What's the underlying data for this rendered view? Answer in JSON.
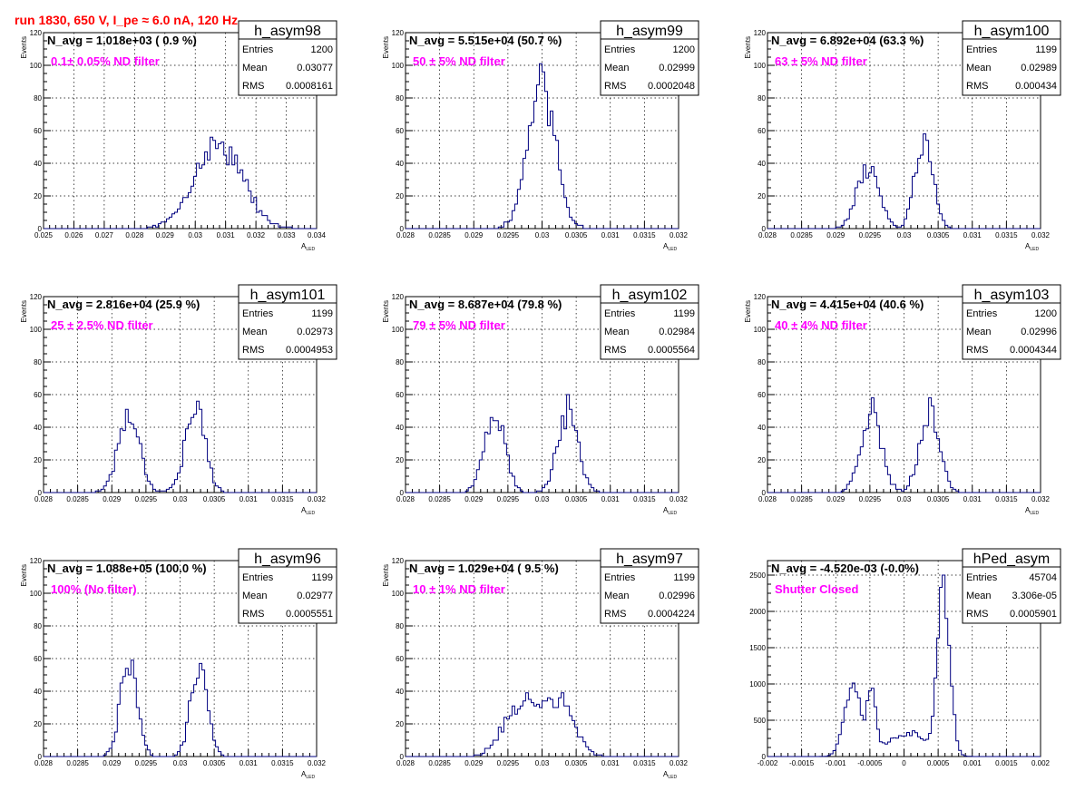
{
  "header": {
    "run_title": "run 1830,   650 V, I_pe ≈ 6.0 nA, 120 Hz"
  },
  "colors": {
    "histogram": "#000080",
    "filter_text": "#ff00ff",
    "header_text": "#ff0000"
  },
  "stat_labels": {
    "entries": "Entries",
    "mean": "Mean",
    "rms": "RMS"
  },
  "chart_data": [
    {
      "type": "bar",
      "name": "h_asym98",
      "n_avg": "N_avg = 1.018e+03 ( 0.9 %)",
      "filter_label": "0.1± 0.05% ND filter",
      "stats": {
        "entries": "1200",
        "mean": "0.03077",
        "rms": "0.0008161"
      },
      "ylabel": "Events",
      "xlabel": "A",
      "xlabel_sub": "LED",
      "xlim": [
        0.025,
        0.034
      ],
      "ylim": [
        0,
        120
      ],
      "grid": true,
      "xticks": [
        0.025,
        0.026,
        0.027,
        0.028,
        0.029,
        0.03,
        0.031,
        0.032,
        0.033,
        0.034
      ],
      "xtick_labels": [
        "0.025",
        "0.026",
        "0.027",
        "0.028",
        "0.029",
        "0.03",
        "0.031",
        "0.032",
        "0.033",
        "0.034"
      ],
      "yticks": [
        0,
        20,
        40,
        60,
        80,
        100,
        120
      ],
      "ytick_labels": [
        "0",
        "20",
        "40",
        "60",
        "80",
        "100",
        "120"
      ],
      "modes": [
        {
          "mu": 0.03077,
          "sigma": 0.00078,
          "peak": 52
        }
      ],
      "seed": 7
    },
    {
      "type": "bar",
      "name": "h_asym99",
      "n_avg": "N_avg = 5.515e+04 (50.7 %)",
      "filter_label": "50 ± 5% ND filter",
      "stats": {
        "entries": "1200",
        "mean": "0.02999",
        "rms": "0.0002048"
      },
      "ylabel": "Events",
      "xlabel": "A",
      "xlabel_sub": "LED",
      "xlim": [
        0.028,
        0.032
      ],
      "ylim": [
        0,
        120
      ],
      "grid": true,
      "xticks": [
        0.028,
        0.0285,
        0.029,
        0.0295,
        0.03,
        0.0305,
        0.031,
        0.0315,
        0.032
      ],
      "xtick_labels": [
        "0.028",
        "0.0285",
        "0.029",
        "0.0295",
        "0.03",
        "0.0305",
        "0.031",
        "0.0315",
        "0.032"
      ],
      "yticks": [
        0,
        20,
        40,
        60,
        80,
        100,
        120
      ],
      "ytick_labels": [
        "0",
        "20",
        "40",
        "60",
        "80",
        "100",
        "120"
      ],
      "modes": [
        {
          "mu": 0.02999,
          "sigma": 0.0002,
          "peak": 90
        }
      ],
      "seed": 11
    },
    {
      "type": "bar",
      "name": "h_asym100",
      "n_avg": "N_avg = 6.892e+04 (63.3 %)",
      "filter_label": "63 ± 5% ND filter",
      "stats": {
        "entries": "1199",
        "mean": "0.02989",
        "rms": "0.000434"
      },
      "ylabel": "Events",
      "xlabel": "A",
      "xlabel_sub": "LED",
      "xlim": [
        0.028,
        0.032
      ],
      "ylim": [
        0,
        120
      ],
      "grid": true,
      "xticks": [
        0.028,
        0.0285,
        0.029,
        0.0295,
        0.03,
        0.0305,
        0.031,
        0.0315,
        0.032
      ],
      "xtick_labels": [
        "0.028",
        "0.0285",
        "0.029",
        "0.0295",
        "0.03",
        "0.0305",
        "0.031",
        "0.0315",
        "0.032"
      ],
      "yticks": [
        0,
        20,
        40,
        60,
        80,
        100,
        120
      ],
      "ytick_labels": [
        "0",
        "20",
        "40",
        "60",
        "80",
        "100",
        "120"
      ],
      "modes": [
        {
          "mu": 0.02947,
          "sigma": 0.00016,
          "peak": 38
        },
        {
          "mu": 0.03029,
          "sigma": 0.00013,
          "peak": 52
        }
      ],
      "seed": 13
    },
    {
      "type": "bar",
      "name": "h_asym101",
      "n_avg": "N_avg = 2.816e+04 (25.9 %)",
      "filter_label": "25 ± 2.5% ND filter",
      "stats": {
        "entries": "1199",
        "mean": "0.02973",
        "rms": "0.0004953"
      },
      "ylabel": "Events",
      "xlabel": "A",
      "xlabel_sub": "LED",
      "xlim": [
        0.028,
        0.032
      ],
      "ylim": [
        0,
        120
      ],
      "grid": true,
      "xticks": [
        0.028,
        0.0285,
        0.029,
        0.0295,
        0.03,
        0.0305,
        0.031,
        0.0315,
        0.032
      ],
      "xtick_labels": [
        "0.028",
        "0.0285",
        "0.029",
        "0.0295",
        "0.03",
        "0.0305",
        "0.031",
        "0.0315",
        "0.032"
      ],
      "yticks": [
        0,
        20,
        40,
        60,
        80,
        100,
        120
      ],
      "ytick_labels": [
        "0",
        "20",
        "40",
        "60",
        "80",
        "100",
        "120"
      ],
      "modes": [
        {
          "mu": 0.02925,
          "sigma": 0.00016,
          "peak": 48
        },
        {
          "mu": 0.03022,
          "sigma": 0.00015,
          "peak": 50
        }
      ],
      "seed": 17
    },
    {
      "type": "bar",
      "name": "h_asym102",
      "n_avg": "N_avg = 8.687e+04 (79.8 %)",
      "filter_label": "79 ± 5% ND filter",
      "stats": {
        "entries": "1199",
        "mean": "0.02984",
        "rms": "0.0005564"
      },
      "ylabel": "Events",
      "xlabel": "A",
      "xlabel_sub": "LED",
      "xlim": [
        0.028,
        0.032
      ],
      "ylim": [
        0,
        120
      ],
      "grid": true,
      "xticks": [
        0.028,
        0.0285,
        0.029,
        0.0295,
        0.03,
        0.0305,
        0.031,
        0.0315,
        0.032
      ],
      "xtick_labels": [
        "0.028",
        "0.0285",
        "0.029",
        "0.0295",
        "0.03",
        "0.0305",
        "0.031",
        "0.0315",
        "0.032"
      ],
      "yticks": [
        0,
        20,
        40,
        60,
        80,
        100,
        120
      ],
      "ytick_labels": [
        "0",
        "20",
        "40",
        "60",
        "80",
        "100",
        "120"
      ],
      "modes": [
        {
          "mu": 0.0293,
          "sigma": 0.00015,
          "peak": 48
        },
        {
          "mu": 0.03038,
          "sigma": 0.00015,
          "peak": 50
        }
      ],
      "seed": 19
    },
    {
      "type": "bar",
      "name": "h_asym103",
      "n_avg": "N_avg = 4.415e+04 (40.6 %)",
      "filter_label": "40 ± 4% ND filter",
      "stats": {
        "entries": "1200",
        "mean": "0.02996",
        "rms": "0.0004344"
      },
      "ylabel": "Events",
      "xlabel": "A",
      "xlabel_sub": "LED",
      "xlim": [
        0.028,
        0.032
      ],
      "ylim": [
        0,
        120
      ],
      "grid": true,
      "xticks": [
        0.028,
        0.0285,
        0.029,
        0.0295,
        0.03,
        0.0305,
        0.031,
        0.0315,
        0.032
      ],
      "xtick_labels": [
        "0.028",
        "0.0285",
        "0.029",
        "0.0295",
        "0.03",
        "0.0305",
        "0.031",
        "0.0315",
        "0.032"
      ],
      "yticks": [
        0,
        20,
        40,
        60,
        80,
        100,
        120
      ],
      "ytick_labels": [
        "0",
        "20",
        "40",
        "60",
        "80",
        "100",
        "120"
      ],
      "modes": [
        {
          "mu": 0.02952,
          "sigma": 0.00015,
          "peak": 50
        },
        {
          "mu": 0.03037,
          "sigma": 0.00014,
          "peak": 52
        }
      ],
      "seed": 23
    },
    {
      "type": "bar",
      "name": "h_asym96",
      "n_avg": "N_avg = 1.088e+05 (100.0 %)",
      "filter_label": "100% (No filter)",
      "stats": {
        "entries": "1199",
        "mean": "0.02977",
        "rms": "0.0005551"
      },
      "ylabel": "Events",
      "xlabel": "A",
      "xlabel_sub": "LED",
      "xlim": [
        0.028,
        0.032
      ],
      "ylim": [
        0,
        120
      ],
      "grid": true,
      "xticks": [
        0.028,
        0.0285,
        0.029,
        0.0295,
        0.03,
        0.0305,
        0.031,
        0.0315,
        0.032
      ],
      "xtick_labels": [
        "0.028",
        "0.0285",
        "0.029",
        "0.0295",
        "0.03",
        "0.0305",
        "0.031",
        "0.0315",
        "0.032"
      ],
      "yticks": [
        0,
        20,
        40,
        60,
        80,
        100,
        120
      ],
      "ytick_labels": [
        "0",
        "20",
        "40",
        "60",
        "80",
        "100",
        "120"
      ],
      "modes": [
        {
          "mu": 0.02925,
          "sigma": 0.00012,
          "peak": 60
        },
        {
          "mu": 0.03028,
          "sigma": 0.00012,
          "peak": 56
        }
      ],
      "seed": 29
    },
    {
      "type": "bar",
      "name": "h_asym97",
      "n_avg": "N_avg = 1.029e+04 ( 9.5 %)",
      "filter_label": "10 ± 1% ND filter",
      "stats": {
        "entries": "1199",
        "mean": "0.02996",
        "rms": "0.0004224"
      },
      "ylabel": "Events",
      "xlabel": "A",
      "xlabel_sub": "LED",
      "xlim": [
        0.028,
        0.032
      ],
      "ylim": [
        0,
        120
      ],
      "grid": true,
      "xticks": [
        0.028,
        0.0285,
        0.029,
        0.0295,
        0.03,
        0.0305,
        0.031,
        0.0315,
        0.032
      ],
      "xtick_labels": [
        "0.028",
        "0.0285",
        "0.029",
        "0.0295",
        "0.03",
        "0.0305",
        "0.031",
        "0.0315",
        "0.032"
      ],
      "yticks": [
        0,
        20,
        40,
        60,
        80,
        100,
        120
      ],
      "ytick_labels": [
        "0",
        "20",
        "40",
        "60",
        "80",
        "100",
        "120"
      ],
      "modes": [
        {
          "mu": 0.0297,
          "sigma": 0.00025,
          "peak": 32
        },
        {
          "mu": 0.03025,
          "sigma": 0.00022,
          "peak": 32
        }
      ],
      "seed": 31
    },
    {
      "type": "bar",
      "name": "hPed_asym",
      "n_avg": "N_avg = -4.520e-03 (-0.0%)",
      "filter_label": "Shutter Closed",
      "stats": {
        "entries": "45704",
        "mean": "3.306e-05",
        "rms": "0.0005901"
      },
      "ylabel": "",
      "xlabel": "",
      "xlabel_sub": "",
      "xlim": [
        -0.002,
        0.002
      ],
      "ylim": [
        0,
        2700
      ],
      "grid": true,
      "xticks": [
        -0.002,
        -0.0015,
        -0.001,
        -0.0005,
        0,
        0.0005,
        0.001,
        0.0015,
        0.002
      ],
      "xtick_labels": [
        "-0.002",
        "-0.0015",
        "-0.001",
        "-0.0005",
        "0",
        "0.0005",
        "0.001",
        "0.0015",
        "0.002"
      ],
      "yticks": [
        0,
        500,
        1000,
        1500,
        2000,
        2500
      ],
      "ytick_labels": [
        "0",
        "500",
        "1000",
        "1500",
        "2000",
        "2500"
      ],
      "modes": [
        {
          "mu": -0.00075,
          "sigma": 0.00012,
          "peak": 1050
        },
        {
          "mu": -0.00047,
          "sigma": 6e-05,
          "peak": 900
        },
        {
          "mu": 5e-05,
          "sigma": 0.00028,
          "peak": 330
        },
        {
          "mu": 0.00058,
          "sigma": 9e-05,
          "peak": 2400
        }
      ],
      "seed": 37
    }
  ]
}
